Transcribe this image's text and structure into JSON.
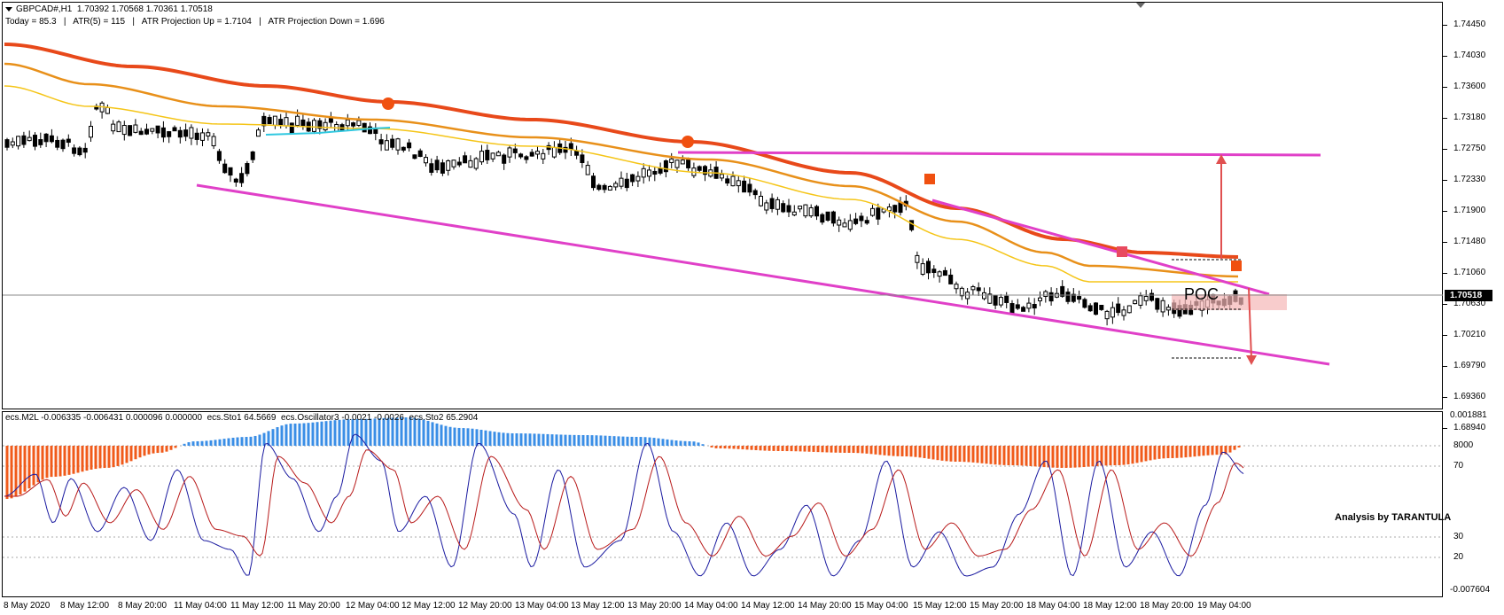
{
  "header": {
    "symbol_line": "GBPCAD#,H1  1.70392 1.70568 1.70361 1.70518",
    "info_line": "Today = 85.3   |   ATR(5) = 115   |   ATR Projection Up = 1.7104   |   ATR Projection Down = 1.696"
  },
  "indicator_header": "ecs.M2L -0.006335 -0.006431 0.000096 0.000000  ecs.Sto1 64.5669  ecs.Oscillator3 -0.0021 -0.0026  ecs.Sto2 65.2904",
  "price_axis": [
    "1.74450",
    "1.74030",
    "1.73600",
    "1.73180",
    "1.72750",
    "1.72330",
    "1.71900",
    "1.71480",
    "1.71060",
    "1.70630",
    "1.70210",
    "1.69790",
    "1.69360",
    "1.68940"
  ],
  "current_price": "1.70518",
  "osc_axis": [
    "0.001881",
    "8000",
    "70",
    "30",
    "20",
    "-0.007604"
  ],
  "time_axis": [
    "8 May 2020",
    "8 May 12:00",
    "8 May 20:00",
    "11 May 04:00",
    "11 May 12:00",
    "11 May 20:00",
    "12 May 04:00",
    "12 May 12:00",
    "12 May 20:00",
    "13 May 04:00",
    "13 May 12:00",
    "13 May 20:00",
    "14 May 04:00",
    "14 May 12:00",
    "14 May 20:00",
    "15 May 04:00",
    "15 May 12:00",
    "15 May 20:00",
    "18 May 04:00",
    "18 May 12:00",
    "18 May 20:00",
    "19 May 04:00"
  ],
  "annotations": {
    "poc_label": "POC",
    "signature": "Analysis by TARANTULA"
  },
  "colors": {
    "ema_fast": "#f5c518",
    "ema_mid": "#e8901a",
    "ema_slow": "#e8491a",
    "channel": "#e040c8",
    "projection_arrow": "#e05050",
    "histogram_up": "#3a8ee6",
    "histogram_down": "#f05a1a",
    "sto_fast": "#1a1aa0",
    "sto_slow": "#b81a1a"
  }
}
